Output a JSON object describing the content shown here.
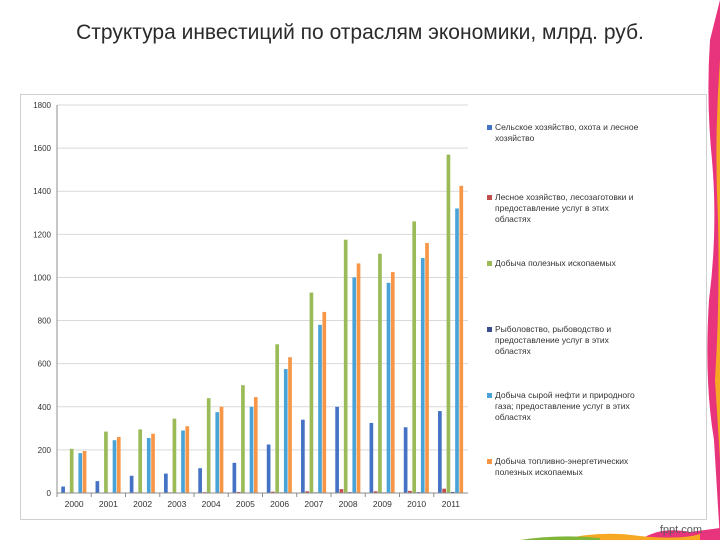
{
  "title": "Структура инвестиций по отраслям экономики, млрд. руб.",
  "watermark": "fppt.com",
  "colors": {
    "blue_dark": "#4472c4",
    "red": "#c0504d",
    "green": "#9bbb59",
    "navy": "#3b4c8f",
    "sky": "#4aa3d8",
    "orange": "#f79646"
  },
  "chart_data": {
    "type": "bar",
    "categories": [
      "2000",
      "2001",
      "2002",
      "2003",
      "2004",
      "2005",
      "2006",
      "2007",
      "2008",
      "2009",
      "2010",
      "2011"
    ],
    "ylim": [
      0,
      1800
    ],
    "yticks": [
      "0",
      "200",
      "400",
      "600",
      "800",
      "1000",
      "1200",
      "1400",
      "1600",
      "1800"
    ],
    "grid": true,
    "legend_position": "right",
    "series": [
      {
        "name": "Сельское хозяйство, охота и лесное хозяйство",
        "color": "#4472c4",
        "values": [
          30,
          55,
          80,
          90,
          115,
          140,
          225,
          340,
          400,
          325,
          305,
          380
        ]
      },
      {
        "name": "Лесное хозяйство, лесозаготовки и предоставление услуг в этих областях",
        "color": "#c0504d",
        "values": [
          2,
          2,
          3,
          3,
          4,
          5,
          6,
          8,
          18,
          8,
          10,
          20
        ]
      },
      {
        "name": "Добыча полезных ископаемых",
        "color": "#9bbb59",
        "values": [
          205,
          285,
          295,
          345,
          440,
          500,
          690,
          930,
          1175,
          1110,
          1260,
          1570
        ]
      },
      {
        "name": "Рыболовство, рыбоводство и предоставление услуг в этих областях",
        "color": "#3b4c8f",
        "values": [
          1,
          1,
          1,
          1,
          2,
          2,
          3,
          3,
          4,
          3,
          4,
          5
        ]
      },
      {
        "name": "Добыча сырой нефти и природного газа; предоставление услуг в этих областях",
        "color": "#4aa3d8",
        "values": [
          185,
          245,
          255,
          290,
          375,
          400,
          575,
          780,
          1000,
          975,
          1090,
          1320
        ]
      },
      {
        "name": "Добыча топливно-энергетических полезных ископаемых",
        "color": "#f79646",
        "values": [
          195,
          260,
          275,
          310,
          400,
          445,
          630,
          840,
          1065,
          1025,
          1160,
          1425
        ]
      }
    ]
  }
}
